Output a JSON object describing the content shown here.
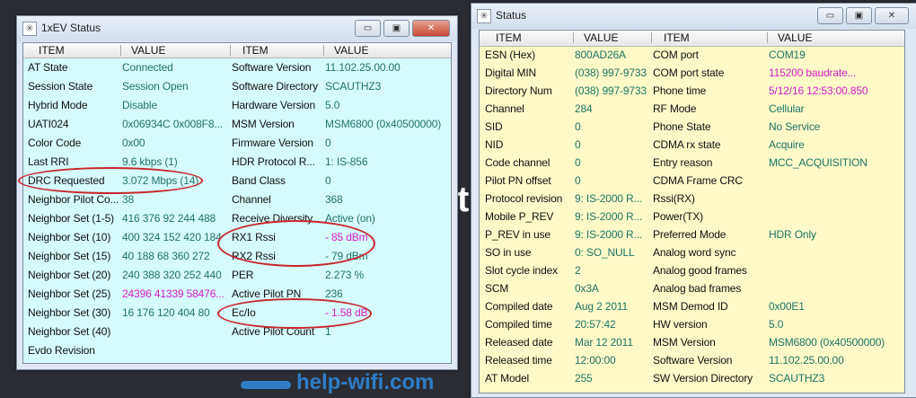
{
  "left_window": {
    "title": "1xEV Status",
    "bg": "#d6fbfd",
    "headers": [
      "ITEM",
      "VALUE",
      "ITEM",
      "VALUE"
    ],
    "rows": [
      {
        "item1": "AT State",
        "value1": "Connected",
        "item2": "Software Version",
        "value2": "11.102.25.00.00"
      },
      {
        "item1": "Session State",
        "value1": "Session Open",
        "item2": "Software Directory",
        "value2": "SCAUTHZ3"
      },
      {
        "item1": "Hybrid Mode",
        "value1": "Disable",
        "item2": "Hardware Version",
        "value2": "5.0"
      },
      {
        "item1": "UATI024",
        "value1": "0x06934C 0x008F8...",
        "item2": "MSM Version",
        "value2": "MSM6800 (0x40500000)"
      },
      {
        "item1": "Color Code",
        "value1": "0x00",
        "item2": "Firmware Version",
        "value2": "0"
      },
      {
        "item1": "Last RRI",
        "value1": "9.6 kbps (1)",
        "item2": "HDR Protocol R...",
        "value2": "1: IS-856"
      },
      {
        "item1": "DRC Requested",
        "value1": "3.072 Mbps (14)",
        "item2": "Band Class",
        "value2": "0"
      },
      {
        "item1": "Neighbor Pilot Co...",
        "value1": "38",
        "item2": "Channel",
        "value2": "368"
      },
      {
        "item1": "Neighbor Set (1-5)",
        "value1": "416 376 92 244 488",
        "item2": "Receive Diversity",
        "value2": "Active (on)"
      },
      {
        "item1": "Neighbor Set (10)",
        "value1": "400 324 152 420 184",
        "item2": "RX1 Rssi",
        "value2": "- 85 dBm",
        "hl2": true
      },
      {
        "item1": "Neighbor Set (15)",
        "value1": "40 188 68 360 272",
        "item2": "RX2 Rssi",
        "value2": "- 79 dBm"
      },
      {
        "item1": "Neighbor Set (20)",
        "value1": "240 388 320 252 440",
        "item2": "PER",
        "value2": "2.273 %"
      },
      {
        "item1": "Neighbor Set (25)",
        "value1": "24396 41339 58476...",
        "hl1": true,
        "item2": "Active Pilot PN",
        "value2": "236"
      },
      {
        "item1": "Neighbor Set (30)",
        "value1": "16 176 120 404 80",
        "item2": "Ec/Io",
        "value2": "- 1.58 dB",
        "hl2": true
      },
      {
        "item1": "Neighbor Set (40)",
        "value1": "",
        "item2": "Active Pilot Count",
        "value2": "1"
      },
      {
        "item1": "Evdo Revision",
        "value1": "",
        "item2": "",
        "value2": ""
      }
    ]
  },
  "right_window": {
    "title": "Status",
    "bg": "#fdf9c9",
    "headers": [
      "ITEM",
      "VALUE",
      "ITEM",
      "VALUE"
    ],
    "rows": [
      {
        "item1": "ESN (Hex)",
        "value1": "800AD26A",
        "item2": "COM port",
        "value2": "COM19"
      },
      {
        "item1": "Digital MIN",
        "value1": "(038) 997-9733",
        "item2": "COM port state",
        "value2": "115200 baudrate...",
        "hl2": true
      },
      {
        "item1": "Directory Num",
        "value1": "(038) 997-9733",
        "item2": "Phone time",
        "value2": "5/12/16 12:53:00.850",
        "hl2": true
      },
      {
        "item1": "Channel",
        "value1": "284",
        "item2": "RF Mode",
        "value2": "Cellular"
      },
      {
        "item1": "SID",
        "value1": "0",
        "item2": "Phone State",
        "value2": "No Service"
      },
      {
        "item1": "NID",
        "value1": "0",
        "item2": "CDMA rx state",
        "value2": "Acquire"
      },
      {
        "item1": "Code channel",
        "value1": "0",
        "item2": "Entry reason",
        "value2": "MCC_ACQUISITION"
      },
      {
        "item1": "Pilot PN offset",
        "value1": "0",
        "item2": "CDMA Frame CRC",
        "value2": ""
      },
      {
        "item1": "Protocol revision",
        "value1": "9:  IS-2000 R...",
        "item2": "Rssi(RX)",
        "value2": ""
      },
      {
        "item1": "Mobile P_REV",
        "value1": "9:  IS-2000 R...",
        "item2": "Power(TX)",
        "value2": ""
      },
      {
        "item1": "P_REV in use",
        "value1": "9:  IS-2000 R...",
        "item2": "Preferred Mode",
        "value2": "HDR Only"
      },
      {
        "item1": "SO in use",
        "value1": "0: SO_NULL",
        "item2": "Analog word sync",
        "value2": ""
      },
      {
        "item1": "Slot cycle index",
        "value1": "2",
        "item2": "Analog good frames",
        "value2": ""
      },
      {
        "item1": "SCM",
        "value1": "0x3A",
        "item2": "Analog bad frames",
        "value2": ""
      },
      {
        "item1": "Compiled date",
        "value1": "Aug  2 2011",
        "item2": "MSM Demod ID",
        "value2": "0x00E1"
      },
      {
        "item1": "Compiled time",
        "value1": "20:57:42",
        "item2": "HW version",
        "value2": "5.0"
      },
      {
        "item1": "Released date",
        "value1": "Mar 12 2011",
        "item2": "MSM Version",
        "value2": "MSM6800 (0x40500000)"
      },
      {
        "item1": "Released time",
        "value1": "12:00:00",
        "item2": "Software Version",
        "value2": "11.102.25.00.00"
      },
      {
        "item1": "AT Model",
        "value1": "255",
        "item2": "SW Version Directory",
        "value2": "SCAUTHZ3"
      }
    ]
  },
  "window_buttons": {
    "minimize": "▭",
    "maximize": "▣",
    "close": "✕"
  },
  "colors": {
    "item": "#111111",
    "value": "#1e7566",
    "highlight": "#d21dc4",
    "annotation": "#c8262a"
  },
  "watermark": "help-wifi.com"
}
